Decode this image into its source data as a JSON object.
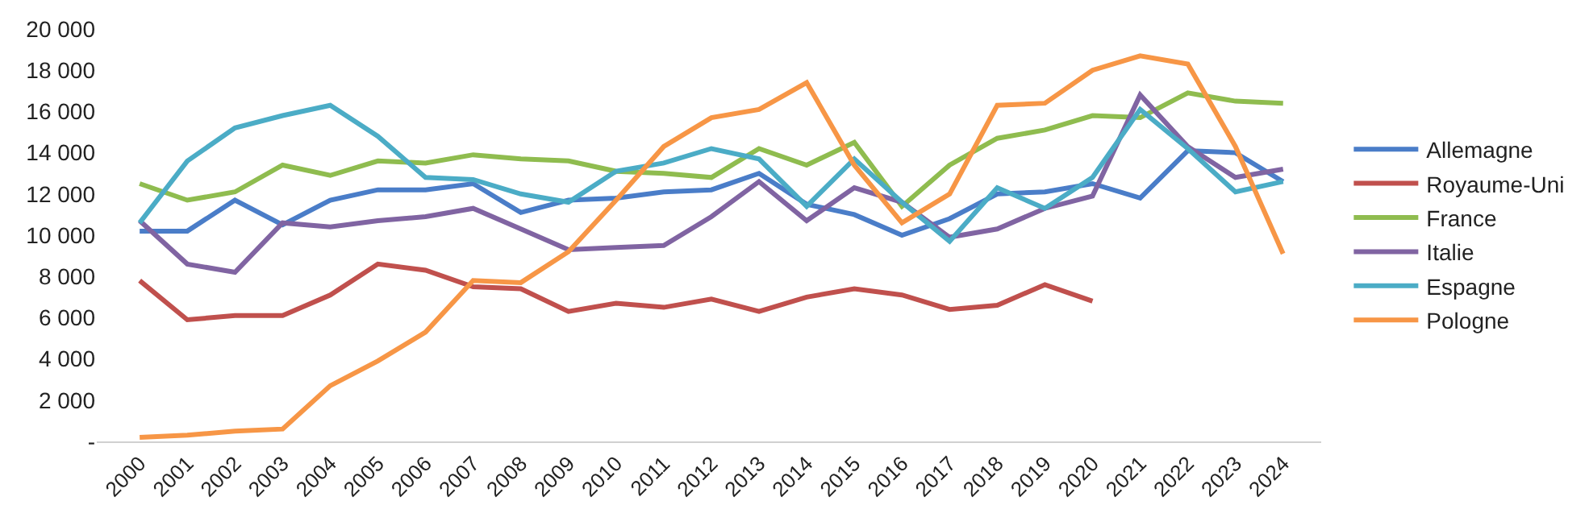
{
  "chart_data": {
    "type": "line",
    "categories": [
      "2000",
      "2001",
      "2002",
      "2003",
      "2004",
      "2005",
      "2006",
      "2007",
      "2008",
      "2009",
      "2010",
      "2011",
      "2012",
      "2013",
      "2014",
      "2015",
      "2016",
      "2017",
      "2018",
      "2019",
      "2020",
      "2021",
      "2022",
      "2023",
      "2024"
    ],
    "series": [
      {
        "name": "Allemagne",
        "color": "#4a7dc8",
        "values": [
          10200,
          10200,
          11700,
          10500,
          11700,
          12200,
          12200,
          12500,
          11100,
          11700,
          11800,
          12100,
          12200,
          13000,
          11500,
          11000,
          10000,
          10800,
          12000,
          12100,
          12500,
          11800,
          14100,
          14000,
          12600
        ]
      },
      {
        "name": "Royaume-Uni",
        "color": "#c0504d",
        "values": [
          7800,
          5900,
          6100,
          6100,
          7100,
          8600,
          8300,
          7500,
          7400,
          6300,
          6700,
          6500,
          6900,
          6300,
          7000,
          7400,
          7100,
          6400,
          6600,
          7600,
          6800,
          null,
          null,
          null,
          null
        ]
      },
      {
        "name": "France",
        "color": "#8fbc4f",
        "values": [
          12500,
          11700,
          12100,
          13400,
          12900,
          13600,
          13500,
          13900,
          13700,
          13600,
          13100,
          13000,
          12800,
          14200,
          13400,
          14500,
          11400,
          13400,
          14700,
          15100,
          15800,
          15700,
          16900,
          16500,
          16400
        ]
      },
      {
        "name": "Italie",
        "color": "#8064a2",
        "values": [
          10700,
          8600,
          8200,
          10600,
          10400,
          10700,
          10900,
          11300,
          10300,
          9300,
          9400,
          9500,
          10900,
          12600,
          10700,
          12300,
          11600,
          9900,
          10300,
          11300,
          11900,
          16800,
          14300,
          12800,
          13200
        ]
      },
      {
        "name": "Espagne",
        "color": "#4bacc6",
        "values": [
          10600,
          13600,
          15200,
          15800,
          16300,
          14800,
          12800,
          12700,
          12000,
          11600,
          13100,
          13500,
          14200,
          13700,
          11400,
          13700,
          11600,
          9700,
          12300,
          11300,
          12800,
          16100,
          14200,
          12100,
          12600
        ]
      },
      {
        "name": "Pologne",
        "color": "#f79646",
        "values": [
          200,
          300,
          500,
          600,
          2700,
          3900,
          5300,
          7800,
          7700,
          9200,
          11700,
          14300,
          15700,
          16100,
          17400,
          13400,
          10600,
          12000,
          16300,
          16400,
          18000,
          18700,
          18300,
          14300,
          9100
        ]
      }
    ],
    "ylim": [
      0,
      20000
    ],
    "yticks": [
      {
        "value": 0,
        "label": "-"
      },
      {
        "value": 2000,
        "label": "2 000"
      },
      {
        "value": 4000,
        "label": "4 000"
      },
      {
        "value": 6000,
        "label": "6 000"
      },
      {
        "value": 8000,
        "label": "8 000"
      },
      {
        "value": 10000,
        "label": "10 000"
      },
      {
        "value": 12000,
        "label": "12 000"
      },
      {
        "value": 14000,
        "label": "14 000"
      },
      {
        "value": 16000,
        "label": "16 000"
      },
      {
        "value": 18000,
        "label": "18 000"
      },
      {
        "value": 20000,
        "label": "20 000"
      }
    ],
    "legend": "right",
    "marker": "none",
    "line_style": "solid"
  }
}
